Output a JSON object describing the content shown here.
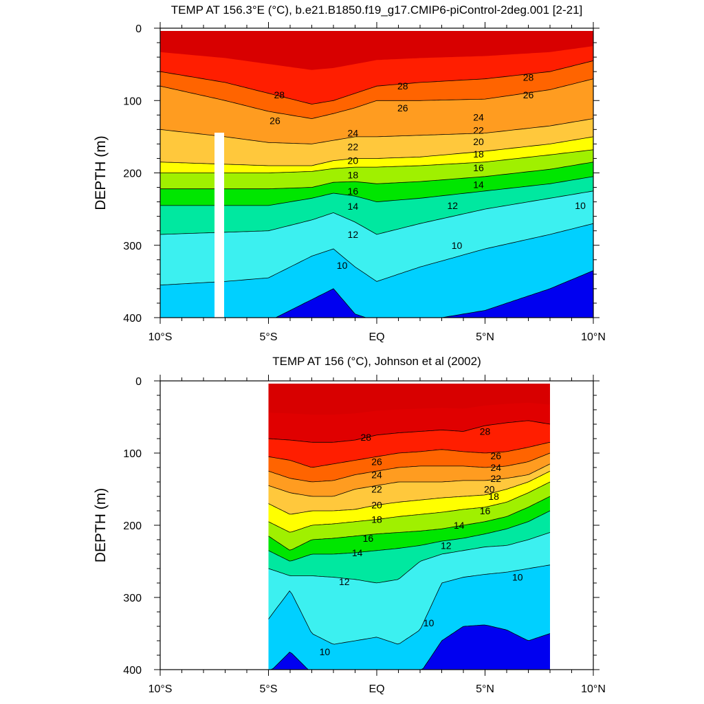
{
  "chart_data": [
    {
      "type": "contour",
      "title": "TEMP AT 156.3°E (°C), b.e21.B1850.f19_g17.CMIP6-piControl-2deg.001 [2-21]",
      "ylabel": "DEPTH (m)",
      "xlabel": "",
      "xlim": [
        -10,
        10
      ],
      "ylim": [
        0,
        400
      ],
      "x_ticks": [
        -10,
        -5,
        0,
        5,
        10
      ],
      "x_tick_labels": [
        "10°S",
        "5°S",
        "EQ",
        "5°N",
        "10°N"
      ],
      "y_ticks": [
        0,
        100,
        200,
        300,
        400
      ],
      "y_tick_labels": [
        "0",
        "100",
        "200",
        "300",
        "400"
      ],
      "data_lon_range": [
        -10,
        10
      ],
      "contour_levels": [
        8,
        10,
        12,
        14,
        16,
        18,
        20,
        22,
        24,
        26,
        28
      ],
      "isotherm_depths_x": [
        -10,
        -7,
        -5,
        -3,
        -2,
        -1,
        0,
        2,
        5,
        8,
        10
      ],
      "isotherms": [
        {
          "temp": 28,
          "depth": [
            60,
            75,
            90,
            105,
            100,
            90,
            80,
            75,
            70,
            60,
            45
          ]
        },
        {
          "temp": 26,
          "depth": [
            80,
            100,
            115,
            125,
            118,
            110,
            100,
            100,
            98,
            85,
            70
          ]
        },
        {
          "temp": 24,
          "depth": [
            140,
            150,
            158,
            160,
            155,
            150,
            150,
            148,
            145,
            135,
            125
          ]
        },
        {
          "temp": 20,
          "depth": [
            185,
            188,
            190,
            190,
            183,
            180,
            180,
            178,
            170,
            160,
            150
          ]
        },
        {
          "temp": 18,
          "depth": [
            200,
            200,
            200,
            198,
            194,
            192,
            192,
            190,
            185,
            175,
            168
          ]
        },
        {
          "temp": 16,
          "depth": [
            222,
            222,
            222,
            220,
            213,
            212,
            215,
            212,
            205,
            195,
            185
          ]
        },
        {
          "temp": 14,
          "depth": [
            245,
            245,
            245,
            235,
            228,
            232,
            240,
            235,
            225,
            215,
            205
          ]
        },
        {
          "temp": 12,
          "depth": [
            285,
            282,
            280,
            265,
            255,
            268,
            285,
            270,
            250,
            235,
            225
          ]
        },
        {
          "temp": 10,
          "depth": [
            355,
            350,
            345,
            315,
            305,
            330,
            350,
            330,
            305,
            285,
            270
          ]
        },
        {
          "temp": 8,
          "depth": [
            405,
            405,
            405,
            375,
            360,
            395,
            405,
            405,
            390,
            360,
            335
          ]
        }
      ],
      "contour_labels": [
        {
          "value": "28",
          "lon": -4.5,
          "depth": 92
        },
        {
          "value": "28",
          "lon": 1.2,
          "depth": 80
        },
        {
          "value": "28",
          "lon": 7.0,
          "depth": 68
        },
        {
          "value": "26",
          "lon": -4.7,
          "depth": 128
        },
        {
          "value": "26",
          "lon": 1.2,
          "depth": 110
        },
        {
          "value": "26",
          "lon": 7.0,
          "depth": 92
        },
        {
          "value": "24",
          "lon": -1.1,
          "depth": 145
        },
        {
          "value": "24",
          "lon": 4.7,
          "depth": 123
        },
        {
          "value": "22",
          "lon": -1.1,
          "depth": 164
        },
        {
          "value": "22",
          "lon": 4.7,
          "depth": 141
        },
        {
          "value": "20",
          "lon": -1.1,
          "depth": 183
        },
        {
          "value": "20",
          "lon": 4.7,
          "depth": 157
        },
        {
          "value": "18",
          "lon": -1.1,
          "depth": 203
        },
        {
          "value": "18",
          "lon": 4.7,
          "depth": 174
        },
        {
          "value": "16",
          "lon": -1.1,
          "depth": 225
        },
        {
          "value": "16",
          "lon": 4.7,
          "depth": 193
        },
        {
          "value": "14",
          "lon": -1.1,
          "depth": 246
        },
        {
          "value": "14",
          "lon": 4.7,
          "depth": 216
        },
        {
          "value": "12",
          "lon": -1.1,
          "depth": 285
        },
        {
          "value": "12",
          "lon": 3.5,
          "depth": 245
        },
        {
          "value": "10",
          "lon": -1.6,
          "depth": 328
        },
        {
          "value": "10",
          "lon": 3.7,
          "depth": 300
        },
        {
          "value": "10",
          "lon": 9.4,
          "depth": 245
        }
      ]
    },
    {
      "type": "contour",
      "title": "TEMP AT 156 (°C), Johnson et al (2002)",
      "ylabel": "DEPTH (m)",
      "xlabel": "",
      "xlim": [
        -10,
        10
      ],
      "ylim": [
        0,
        400
      ],
      "x_ticks": [
        -10,
        -5,
        0,
        5,
        10
      ],
      "x_tick_labels": [
        "10°S",
        "5°S",
        "EQ",
        "5°N",
        "10°N"
      ],
      "y_ticks": [
        0,
        100,
        200,
        300,
        400
      ],
      "y_tick_labels": [
        "0",
        "100",
        "200",
        "300",
        "400"
      ],
      "data_lon_range": [
        -5,
        8
      ],
      "contour_levels": [
        8,
        10,
        12,
        14,
        16,
        18,
        20,
        22,
        24,
        26,
        28
      ],
      "isotherm_depths_x": [
        -5,
        -4,
        -3,
        -2,
        -1,
        0,
        1,
        2,
        3,
        4,
        5,
        6,
        7,
        8
      ],
      "isotherms": [
        {
          "temp": 28,
          "depth": [
            80,
            82,
            85,
            85,
            82,
            75,
            72,
            70,
            68,
            70,
            62,
            58,
            55,
            60
          ]
        },
        {
          "temp": 26,
          "depth": [
            105,
            110,
            120,
            115,
            110,
            105,
            100,
            98,
            95,
            98,
            100,
            98,
            92,
            85
          ]
        },
        {
          "temp": 24,
          "depth": [
            125,
            135,
            140,
            138,
            130,
            125,
            120,
            118,
            118,
            118,
            120,
            118,
            112,
            100
          ]
        },
        {
          "temp": 22,
          "depth": [
            145,
            155,
            160,
            160,
            150,
            145,
            140,
            140,
            140,
            138,
            138,
            135,
            130,
            115
          ]
        },
        {
          "temp": 20,
          "depth": [
            170,
            185,
            180,
            180,
            178,
            172,
            168,
            165,
            162,
            160,
            158,
            150,
            140,
            125
          ]
        },
        {
          "temp": 18,
          "depth": [
            195,
            210,
            200,
            198,
            195,
            192,
            188,
            185,
            182,
            178,
            175,
            168,
            155,
            140
          ]
        },
        {
          "temp": 16,
          "depth": [
            215,
            235,
            220,
            218,
            215,
            212,
            210,
            208,
            205,
            200,
            195,
            188,
            175,
            160
          ]
        },
        {
          "temp": 14,
          "depth": [
            235,
            250,
            240,
            240,
            238,
            235,
            232,
            228,
            222,
            218,
            212,
            205,
            195,
            180
          ]
        },
        {
          "temp": 12,
          "depth": [
            260,
            270,
            270,
            272,
            275,
            280,
            275,
            250,
            240,
            235,
            230,
            228,
            220,
            210
          ]
        },
        {
          "temp": 10,
          "depth": [
            330,
            290,
            350,
            365,
            360,
            355,
            365,
            345,
            280,
            272,
            268,
            265,
            260,
            255
          ]
        },
        {
          "temp": 8,
          "depth": [
            405,
            375,
            405,
            405,
            405,
            405,
            405,
            405,
            360,
            340,
            338,
            345,
            360,
            350
          ]
        }
      ],
      "contour_labels": [
        {
          "value": "28",
          "lon": -0.5,
          "depth": 78
        },
        {
          "value": "28",
          "lon": 5.0,
          "depth": 70
        },
        {
          "value": "26",
          "lon": 0.0,
          "depth": 112
        },
        {
          "value": "26",
          "lon": 5.5,
          "depth": 104
        },
        {
          "value": "24",
          "lon": 0.0,
          "depth": 130
        },
        {
          "value": "24",
          "lon": 5.5,
          "depth": 120
        },
        {
          "value": "22",
          "lon": 0.0,
          "depth": 150
        },
        {
          "value": "22",
          "lon": 5.5,
          "depth": 135
        },
        {
          "value": "20",
          "lon": 0.0,
          "depth": 172
        },
        {
          "value": "20",
          "lon": 5.2,
          "depth": 150
        },
        {
          "value": "18",
          "lon": 0.0,
          "depth": 192
        },
        {
          "value": "18",
          "lon": 5.4,
          "depth": 160
        },
        {
          "value": "16",
          "lon": -0.4,
          "depth": 218
        },
        {
          "value": "16",
          "lon": 5.0,
          "depth": 180
        },
        {
          "value": "14",
          "lon": -0.9,
          "depth": 238
        },
        {
          "value": "14",
          "lon": 3.8,
          "depth": 200
        },
        {
          "value": "12",
          "lon": 3.2,
          "depth": 228
        },
        {
          "value": "12",
          "lon": -1.5,
          "depth": 278
        },
        {
          "value": "10",
          "lon": 6.5,
          "depth": 272
        },
        {
          "value": "10",
          "lon": 2.4,
          "depth": 335
        },
        {
          "value": "10",
          "lon": -2.4,
          "depth": 375
        }
      ]
    }
  ]
}
